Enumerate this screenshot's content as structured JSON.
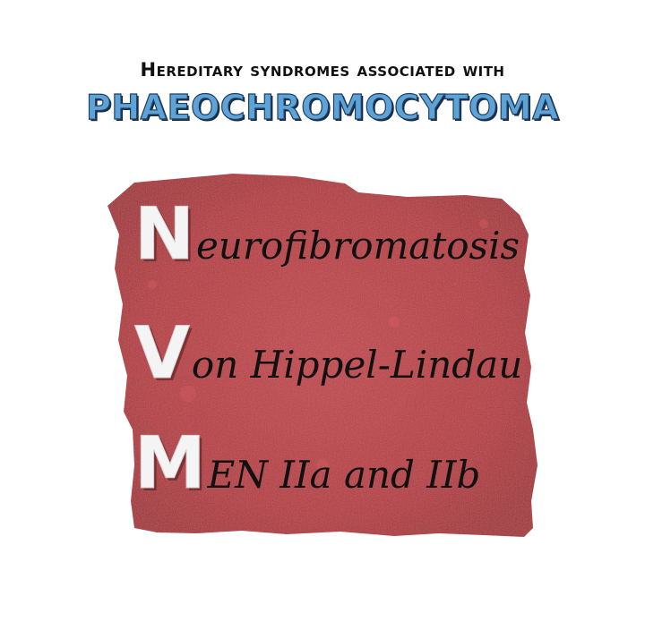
{
  "header": {
    "line1": "Hereditary syndromes associated with",
    "line2": "PHAEOCHROMOCYTOMA"
  },
  "mnemonic": {
    "rows": [
      {
        "initial": "N",
        "rest": "eurofibromatosis"
      },
      {
        "initial": "V",
        "rest": "on Hippel-Lindau"
      },
      {
        "initial": "M",
        "rest": "EN IIa and IIb"
      }
    ]
  },
  "colors": {
    "paper": "#b8383f",
    "title_fill": "#5ea3d6",
    "title_outline": "#1f3f66",
    "initial_fill": "#f4f4f4",
    "script_text": "#111111"
  }
}
